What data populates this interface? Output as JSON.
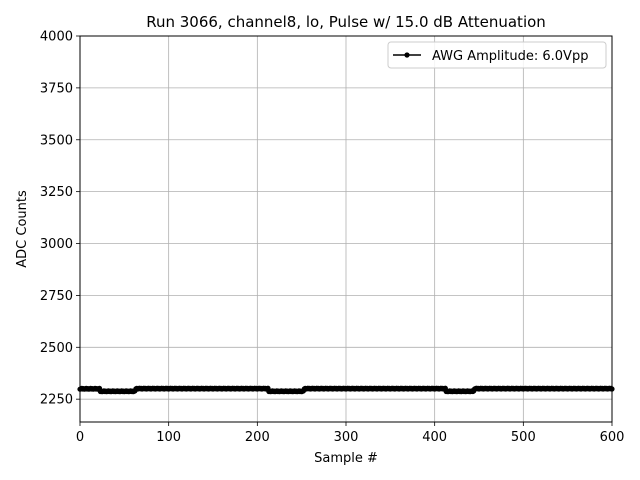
{
  "chart_data": {
    "type": "line",
    "title": "Run 3066, channel8, lo, Pulse w/ 15.0 dB Attenuation",
    "xlabel": "Sample #",
    "ylabel": "ADC Counts",
    "xlim": [
      0,
      600
    ],
    "ylim": [
      2140,
      4000
    ],
    "xticks": [
      0,
      100,
      200,
      300,
      400,
      500,
      600
    ],
    "yticks": [
      2250,
      2500,
      2750,
      3000,
      3250,
      3500,
      3750,
      4000
    ],
    "grid": true,
    "legend_position": "upper-right",
    "series": [
      {
        "name": "AWG Amplitude: 6.0Vpp",
        "color": "#000000",
        "marker": "dot",
        "segments": [
          {
            "from": 0,
            "to": 22,
            "value": 2300
          },
          {
            "from": 23,
            "to": 62,
            "value": 2288
          },
          {
            "from": 63,
            "to": 212,
            "value": 2301
          },
          {
            "from": 213,
            "to": 252,
            "value": 2288
          },
          {
            "from": 253,
            "to": 412,
            "value": 2301
          },
          {
            "from": 413,
            "to": 444,
            "value": 2288
          },
          {
            "from": 445,
            "to": 600,
            "value": 2301
          }
        ]
      }
    ]
  }
}
